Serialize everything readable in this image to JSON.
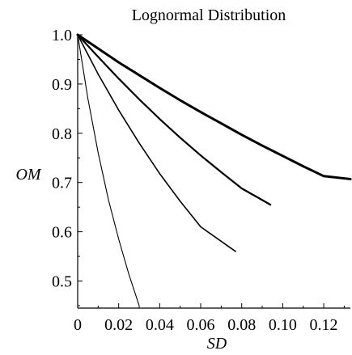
{
  "chart_data": {
    "type": "line",
    "title": "Lognormal Distribution",
    "xlabel": "SD",
    "ylabel": "OM",
    "xlim": [
      0,
      0.133
    ],
    "ylim": [
      0.445,
      1.0
    ],
    "x_ticks": [
      0,
      0.02,
      0.04,
      0.06,
      0.08,
      0.1,
      0.12
    ],
    "x_tick_labels": [
      "0",
      "0.02",
      "0.04",
      "0.06",
      "0.08",
      "0.10",
      "0.12"
    ],
    "y_ticks": [
      0.5,
      0.6,
      0.7,
      0.8,
      0.9,
      1.0
    ],
    "y_tick_labels": [
      "0.5",
      "0.6",
      "0.7",
      "0.8",
      "0.9",
      "1.0"
    ],
    "grid": false,
    "legend": "none",
    "series": [
      {
        "stroke_width": 3,
        "x": [
          0,
          0.01,
          0.02,
          0.03,
          0.04,
          0.05,
          0.06,
          0.07,
          0.08,
          0.09,
          0.1,
          0.11,
          0.12,
          0.133
        ],
        "y": [
          1.0,
          0.972,
          0.944,
          0.918,
          0.892,
          0.867,
          0.843,
          0.82,
          0.797,
          0.775,
          0.754,
          0.733,
          0.713,
          0.707
        ]
      },
      {
        "stroke_width": 2.2,
        "x": [
          0,
          0.01,
          0.02,
          0.03,
          0.04,
          0.05,
          0.06,
          0.07,
          0.08,
          0.094
        ],
        "y": [
          1.0,
          0.955,
          0.911,
          0.869,
          0.829,
          0.791,
          0.755,
          0.721,
          0.688,
          0.655
        ]
      },
      {
        "stroke_width": 1.6,
        "x": [
          0,
          0.01,
          0.02,
          0.03,
          0.04,
          0.05,
          0.06,
          0.077
        ],
        "y": [
          1.0,
          0.92,
          0.847,
          0.78,
          0.718,
          0.662,
          0.61,
          0.56
        ]
      },
      {
        "stroke_width": 1.1,
        "x": [
          0,
          0.005,
          0.01,
          0.015,
          0.02,
          0.025,
          0.03
        ],
        "y": [
          1.0,
          0.87,
          0.76,
          0.665,
          0.585,
          0.513,
          0.45
        ]
      }
    ]
  }
}
